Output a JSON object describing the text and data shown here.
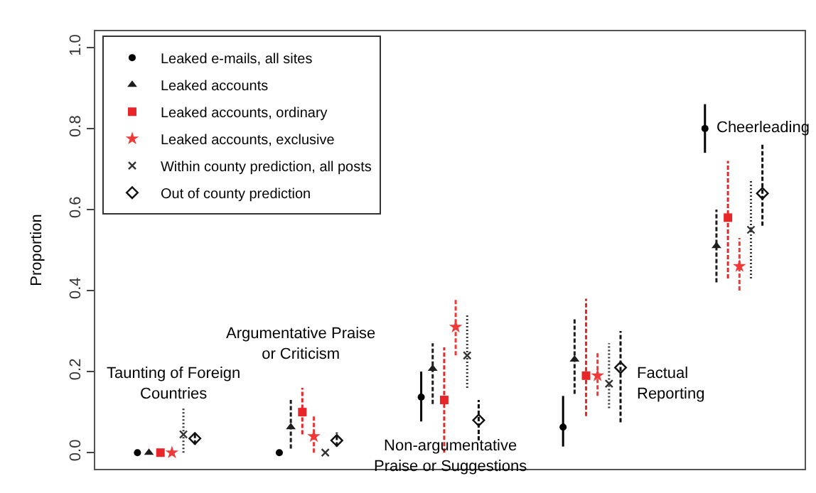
{
  "chart_data": {
    "type": "scatter",
    "ylabel": "Proportion",
    "categories": [
      null,
      null,
      null,
      null,
      null
    ],
    "ylim": [
      -0.04,
      1.04
    ],
    "yticks": [
      {
        "value": 0,
        "label": "0.0"
      },
      {
        "value": 0.2,
        "label": "0.2"
      },
      {
        "value": 0.4,
        "label": "0.4"
      },
      {
        "value": 0.6,
        "label": "0.6"
      },
      {
        "value": 0.8,
        "label": "0.8"
      },
      {
        "value": 1,
        "label": "1.0"
      }
    ],
    "tick_labels": "y",
    "legend": "top left",
    "annotations": [
      "Taunting of Foreign\nCountries",
      "Argumentative Praise\nor Criticism",
      "Non-argumentative\nPraise or Suggestions",
      "Factual\nReporting",
      "Cheerleading"
    ],
    "series": [
      {
        "name": "Leaked e-mails, all sites",
        "color": "#000000",
        "marker": "circle",
        "line_style": "solid",
        "values": [
          0,
          0,
          0.137,
          0.063,
          0.8
        ],
        "errors": [
          null,
          null,
          [
            0.077,
            0.2
          ],
          [
            0.015,
            0.14
          ],
          [
            0.74,
            0.86
          ]
        ]
      },
      {
        "name": "Leaked accounts",
        "color": "#1e1e1e",
        "marker": "triangle",
        "line_style": "dashed",
        "values": [
          0,
          0.063,
          0.207,
          0.23,
          0.51
        ],
        "errors": [
          null,
          [
            0.01,
            0.13
          ],
          [
            0.12,
            0.27
          ],
          [
            0.145,
            0.33
          ],
          [
            0.42,
            0.6
          ]
        ]
      },
      {
        "name": "Leaked accounts, ordinary",
        "color": "#e8262a",
        "marker": "square",
        "line_style": "dashed",
        "values": [
          0,
          0.1,
          0.13,
          0.19,
          0.58
        ],
        "errors": [
          null,
          [
            0.045,
            0.16
          ],
          [
            0.0,
            0.26
          ],
          [
            0.09,
            0.38
          ],
          [
            0.43,
            0.72
          ]
        ]
      },
      {
        "name": "Leaked accounts, exclusive",
        "color": "#f03a3a",
        "marker": "star",
        "line_style": "dashed",
        "values": [
          0,
          0.04,
          0.31,
          0.19,
          0.46
        ],
        "errors": [
          null,
          [
            0.0,
            0.09
          ],
          [
            0.24,
            0.38
          ],
          [
            0.14,
            0.25
          ],
          [
            0.4,
            0.53
          ]
        ]
      },
      {
        "name": "Within county prediction, all posts",
        "color": "#333333",
        "marker": "cross",
        "line_style": "dotted",
        "values": [
          0.045,
          0.0,
          0.24,
          0.17,
          0.55
        ],
        "errors": [
          [
            0.0,
            0.11
          ],
          null,
          [
            0.16,
            0.34
          ],
          [
            0.11,
            0.27
          ],
          [
            0.43,
            0.67
          ]
        ]
      },
      {
        "name": "Out of county prediction",
        "color": "#111111",
        "marker": "diamond",
        "line_style": "dashed",
        "values": [
          0.035,
          0.03,
          0.08,
          0.21,
          0.64
        ],
        "errors": [
          [
            0.02,
            0.05
          ],
          [
            0.015,
            0.05
          ],
          [
            0.03,
            0.13
          ],
          [
            0.075,
            0.3
          ],
          [
            0.56,
            0.76
          ]
        ]
      }
    ]
  }
}
